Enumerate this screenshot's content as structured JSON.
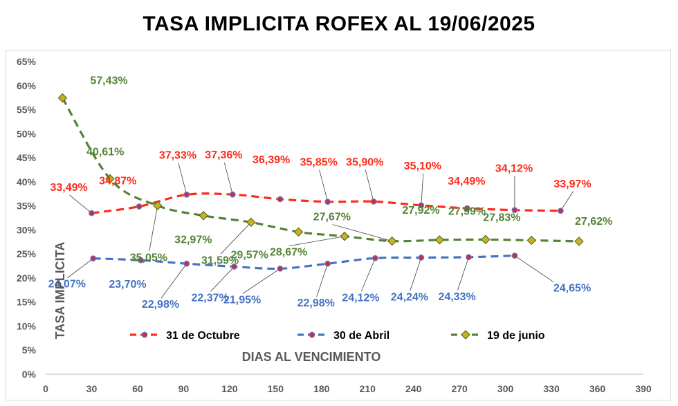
{
  "chart_data": {
    "type": "line",
    "title": "TASA IMPLICITA ROFEX AL 19/06/2025",
    "xlabel": "DIAS AL VENCIMIENTO",
    "ylabel": "TASA IMPLICITA",
    "xlim": [
      0,
      390
    ],
    "ylim": [
      0,
      65
    ],
    "x_ticks": [
      "0",
      "30",
      "60",
      "90",
      "120",
      "150",
      "180",
      "210",
      "240",
      "270",
      "300",
      "330",
      "360",
      "390"
    ],
    "y_ticks": [
      "0%",
      "5%",
      "10%",
      "15%",
      "20%",
      "25%",
      "30%",
      "35%",
      "40%",
      "45%",
      "50%",
      "55%",
      "60%",
      "65%"
    ],
    "grid": false,
    "legend_position": "bottom",
    "series": [
      {
        "name": "31 de Octubre",
        "color": "#ff2a1a",
        "marker": "circle",
        "x": [
          30,
          61,
          92,
          122,
          153,
          184,
          214,
          245,
          275,
          306,
          336
        ],
        "y": [
          33.49,
          34.87,
          37.33,
          37.36,
          36.39,
          35.85,
          35.9,
          35.1,
          34.49,
          34.12,
          33.97
        ],
        "labels": [
          "33,49%",
          "34,87%",
          "37,33%",
          "37,36%",
          "36,39%",
          "35,85%",
          "35,90%",
          "35,10%",
          "34,49%",
          "34,12%",
          "33,97%"
        ]
      },
      {
        "name": "30 de Abril",
        "color": "#4472c4",
        "marker": "circle",
        "x": [
          31,
          62,
          92,
          123,
          153,
          184,
          215,
          245,
          276,
          306
        ],
        "y": [
          24.07,
          23.7,
          22.98,
          22.37,
          21.95,
          22.98,
          24.12,
          24.24,
          24.33,
          24.65
        ],
        "labels": [
          "24,07%",
          "23,70%",
          "22,98%",
          "22,37%",
          "21,95%",
          "22,98%",
          "24,12%",
          "24,24%",
          "24,33%",
          "24,65%"
        ]
      },
      {
        "name": "19 de junio",
        "color": "#548235",
        "marker": "diamond",
        "x": [
          11,
          42,
          73,
          103,
          134,
          165,
          195,
          226,
          257,
          287,
          317,
          348
        ],
        "y": [
          57.43,
          40.61,
          35.05,
          32.97,
          31.59,
          29.57,
          28.67,
          27.67,
          27.92,
          27.99,
          27.83,
          27.62
        ],
        "labels": [
          "57,43%",
          "40,61%",
          "35,05%",
          "32,97%",
          "31,59%",
          "29,57%",
          "28,67%",
          "27,67%",
          "27,92%",
          "27,99%",
          "27,83%",
          "27,62%"
        ]
      }
    ]
  }
}
